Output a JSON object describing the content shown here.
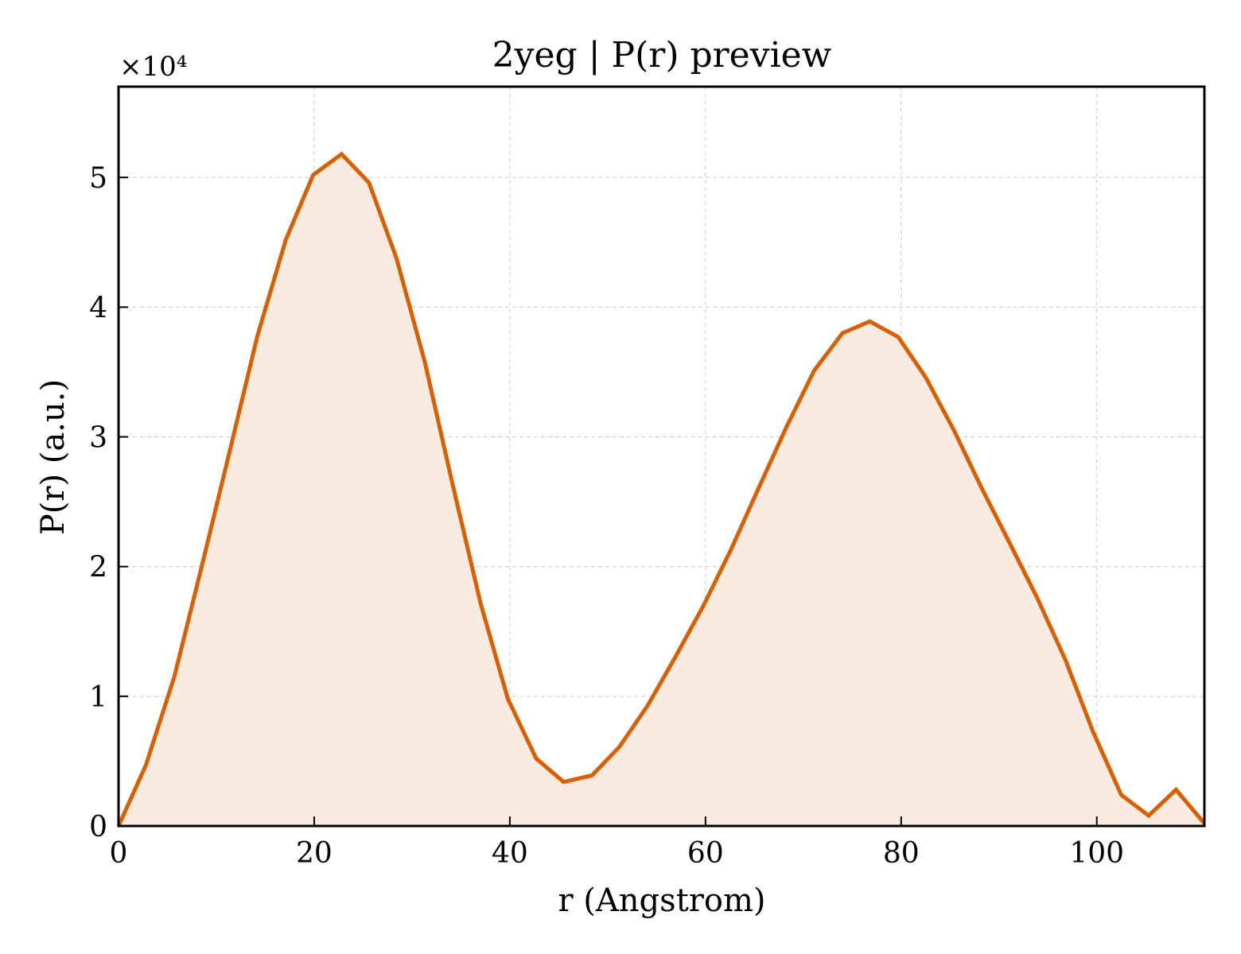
{
  "chart_data": {
    "type": "area",
    "title": "2yeg | P(r) preview",
    "xlabel": "r (Angstrom)",
    "ylabel": "P(r) (a.u.)",
    "y_multiplier": "×10⁴",
    "xlim": [
      0,
      111
    ],
    "ylim": [
      0,
      5.7
    ],
    "x_ticks": [
      0,
      20,
      40,
      60,
      80,
      100
    ],
    "y_ticks": [
      0,
      1,
      2,
      3,
      4,
      5
    ],
    "grid": true,
    "series": [
      {
        "x": [
          0,
          2.8,
          5.7,
          8.5,
          11.4,
          14.2,
          17.1,
          19.9,
          22.8,
          25.6,
          28.4,
          31.3,
          34.1,
          37.0,
          39.8,
          42.7,
          45.5,
          48.4,
          51.2,
          54.1,
          56.9,
          59.8,
          62.6,
          65.4,
          68.3,
          71.1,
          74.0,
          76.8,
          79.7,
          82.5,
          85.4,
          88.2,
          91.1,
          93.9,
          96.8,
          99.6,
          102.5,
          105.3,
          108.1,
          111.0
        ],
        "values": [
          0.0,
          0.47,
          1.15,
          2.0,
          2.9,
          3.78,
          4.52,
          5.02,
          5.18,
          4.96,
          4.38,
          3.58,
          2.65,
          1.72,
          0.98,
          0.52,
          0.34,
          0.39,
          0.61,
          0.93,
          1.3,
          1.7,
          2.13,
          2.6,
          3.08,
          3.51,
          3.8,
          3.89,
          3.77,
          3.46,
          3.05,
          2.61,
          2.18,
          1.76,
          1.28,
          0.73,
          0.24,
          0.08,
          0.28,
          0.02
        ]
      }
    ],
    "colors": {
      "line": "#d95f02",
      "fill": "#f9ebe0",
      "grid": "#cccccc",
      "frame": "#000000"
    }
  }
}
